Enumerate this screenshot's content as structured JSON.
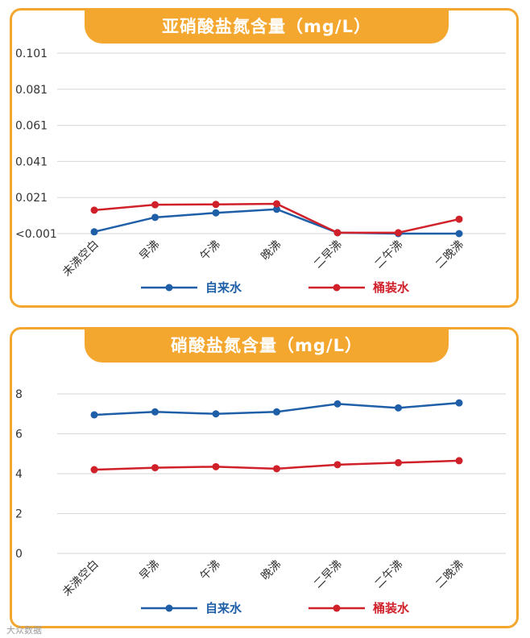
{
  "colors": {
    "tap_water": "#1f5fa8",
    "bucket_water": "#d0202a",
    "accent": "#f3a72f"
  },
  "watermark": "大众数据",
  "chart_data": [
    {
      "type": "line",
      "title": "亚硝酸盐氮含量（mg/L）",
      "categories": [
        "未沸空白",
        "早沸",
        "午沸",
        "晚沸",
        "二早沸",
        "二午沸",
        "二晚沸"
      ],
      "y_ticks": [
        "<0.001",
        "0.021",
        "0.041",
        "0.061",
        "0.081",
        "0.101"
      ],
      "ylim": [
        0.001,
        0.101
      ],
      "series": [
        {
          "name": "自来水",
          "color": "#1f5fa8",
          "values": [
            0.002,
            0.01,
            0.0125,
            0.0145,
            0.0015,
            0.001,
            0.001
          ]
        },
        {
          "name": "桶装水",
          "color": "#d0202a",
          "values": [
            0.014,
            0.017,
            0.0172,
            0.0175,
            0.0015,
            0.0015,
            0.009
          ]
        }
      ],
      "grid": true,
      "legend": "bottom"
    },
    {
      "type": "line",
      "title": "硝酸盐氮含量（mg/L）",
      "categories": [
        "未沸空白",
        "早沸",
        "午沸",
        "晚沸",
        "二早沸",
        "二午沸",
        "二晚沸"
      ],
      "y_ticks": [
        "0",
        "2",
        "4",
        "6",
        "8"
      ],
      "ylim": [
        0,
        8
      ],
      "series": [
        {
          "name": "自来水",
          "color": "#1f5fa8",
          "values": [
            6.95,
            7.1,
            7.0,
            7.1,
            7.5,
            7.3,
            7.55
          ]
        },
        {
          "name": "桶装水",
          "color": "#d0202a",
          "values": [
            4.2,
            4.3,
            4.35,
            4.25,
            4.45,
            4.55,
            4.65
          ]
        }
      ],
      "grid": true,
      "legend": "bottom"
    }
  ]
}
